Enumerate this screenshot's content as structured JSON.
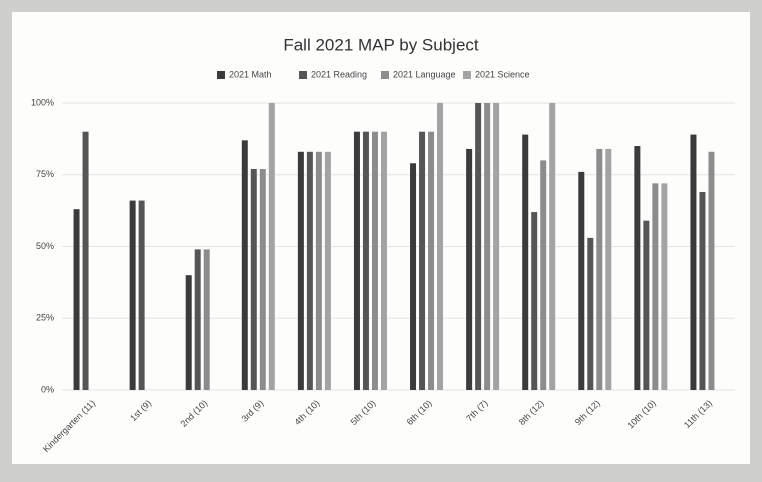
{
  "chart_data": {
    "type": "bar",
    "title": "Fall 2021 MAP by Subject",
    "categories": [
      "Kindergarten (11)",
      "1st (9)",
      "2nd (10)",
      "3rd (9)",
      "4th (10)",
      "5th (10)",
      "6th (10)",
      "7th (7)",
      "8th (12)",
      "9th (12)",
      "10th (10)",
      "11th (13)"
    ],
    "series": [
      {
        "name": "2021 Math",
        "color": "#3b3b3b",
        "values": [
          63,
          66,
          40,
          87,
          83,
          90,
          79,
          84,
          89,
          76,
          85,
          89
        ]
      },
      {
        "name": "2021 Reading",
        "color": "#555555",
        "values": [
          90,
          66,
          49,
          77,
          83,
          90,
          90,
          100,
          62,
          53,
          59,
          69
        ]
      },
      {
        "name": "2021 Language",
        "color": "#8c8c8c",
        "values": [
          null,
          null,
          49,
          77,
          83,
          90,
          90,
          100,
          80,
          84,
          72,
          83
        ]
      },
      {
        "name": "2021 Science",
        "color": "#a3a3a3",
        "values": [
          null,
          null,
          null,
          100,
          83,
          90,
          100,
          100,
          100,
          84,
          72,
          null
        ]
      }
    ],
    "ylim": [
      0,
      100
    ],
    "yticks": [
      {
        "value": 0,
        "label": "0%"
      },
      {
        "value": 25,
        "label": "25%"
      },
      {
        "value": 50,
        "label": "50%"
      },
      {
        "value": 75,
        "label": "75%"
      },
      {
        "value": 100,
        "label": "100%"
      }
    ],
    "grid": true,
    "legend": "top"
  }
}
